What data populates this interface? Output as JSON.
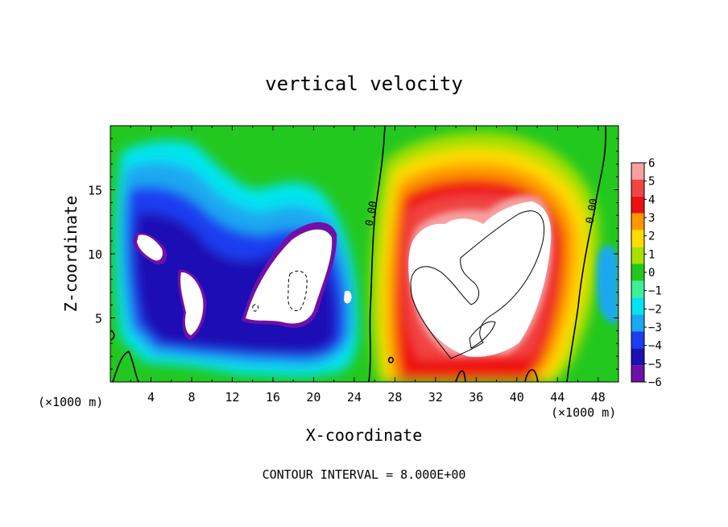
{
  "chart_data": {
    "type": "heatmap",
    "title": "vertical velocity",
    "xlabel": "X-coordinate",
    "ylabel": "Z-coordinate",
    "x_unit_left": "(×1000 m)",
    "x_unit_right": "(×1000 m)",
    "xlim": [
      0,
      50
    ],
    "ylim": [
      0,
      20
    ],
    "x_ticks": [
      4,
      8,
      12,
      16,
      20,
      24,
      28,
      32,
      36,
      40,
      44,
      48
    ],
    "x_tick_labels": [
      "4",
      "8",
      "12",
      "16",
      "20",
      "24",
      "28",
      "32",
      "36",
      "40",
      "44",
      "48"
    ],
    "y_ticks": [
      5,
      10,
      15
    ],
    "y_tick_labels": [
      "5",
      "10",
      "15"
    ],
    "colorbar": {
      "levels": [
        6,
        5,
        4,
        3,
        2,
        1,
        0,
        -1,
        -2,
        -3,
        -4,
        -5,
        -6
      ],
      "labels": [
        "6",
        "5",
        "4",
        "3",
        "2",
        "1",
        "0",
        "−1",
        "−2",
        "−3",
        "−4",
        "−5",
        "−6"
      ],
      "colors": [
        "#f6a0a0",
        "#f24444",
        "#ee1010",
        "#ff9800",
        "#ffdd00",
        "#a8e000",
        "#22c81e",
        "#3ef09a",
        "#00e5f0",
        "#1aa8f0",
        "#1a3ef0",
        "#1a10b4",
        "#7010a8"
      ]
    },
    "contour_labels": [
      "0.00",
      "0.00"
    ],
    "contour_label_positions_data": [
      [
        26.0,
        13.1
      ],
      [
        47.7,
        13.3
      ]
    ],
    "footnote": "CONTOUR INTERVAL = 8.000E+00",
    "regions": [
      {
        "kind": "updraft",
        "x_range": [
          27,
          45
        ],
        "z_range": [
          0,
          18
        ],
        "max_approx": 6
      },
      {
        "kind": "downdraft",
        "x_range": [
          1,
          25
        ],
        "z_range": [
          1,
          16
        ],
        "min_approx": -6
      }
    ]
  }
}
